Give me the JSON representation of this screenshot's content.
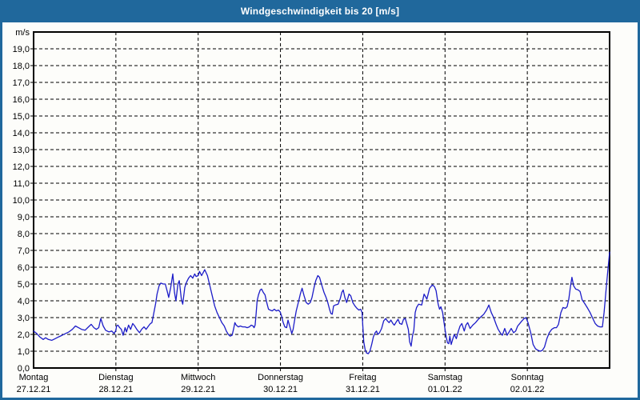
{
  "window": {
    "title": "Windgeschwindigkeit bis 20 [m/s]"
  },
  "colors": {
    "titlebar_bg": "#20689c",
    "titlebar_text": "#ffffff",
    "window_border": "#20689c",
    "plot_background": "#fdfdfa",
    "grid": "#000000",
    "line": "#1c1cc8"
  },
  "chart_data": {
    "type": "line",
    "title": "Windgeschwindigkeit bis 20 [m/s]",
    "unit_label": "m/s",
    "grid": "dashed",
    "legend": "none",
    "ylim": [
      0,
      20
    ],
    "y_ticks": [
      0,
      1,
      2,
      3,
      4,
      5,
      6,
      7,
      8,
      9,
      10,
      11,
      12,
      13,
      14,
      15,
      16,
      17,
      18,
      19
    ],
    "y_tick_labels": [
      "0,0",
      "1,0",
      "2,0",
      "3,0",
      "4,0",
      "5,0",
      "6,0",
      "7,0",
      "8,0",
      "9,0",
      "10,0",
      "11,0",
      "12,0",
      "13,0",
      "14,0",
      "15,0",
      "16,0",
      "17,0",
      "18,0",
      "19,0"
    ],
    "x_range_hours": [
      0,
      168
    ],
    "x_day_labels": [
      {
        "weekday": "Montag",
        "date": "27.12.21"
      },
      {
        "weekday": "Dienstag",
        "date": "28.12.21"
      },
      {
        "weekday": "Mittwoch",
        "date": "29.12.21"
      },
      {
        "weekday": "Donnerstag",
        "date": "30.12.21"
      },
      {
        "weekday": "Freitag",
        "date": "31.12.21"
      },
      {
        "weekday": "Samstag",
        "date": "01.01.22"
      },
      {
        "weekday": "Sonntag",
        "date": "02.01.22"
      }
    ],
    "series": [
      {
        "name": "Windgeschwindigkeit",
        "color": "#1c1cc8",
        "points": [
          [
            0,
            2.2
          ],
          [
            0.9,
            2.05
          ],
          [
            1.8,
            1.85
          ],
          [
            2.8,
            1.7
          ],
          [
            3.5,
            1.8
          ],
          [
            4.3,
            1.7
          ],
          [
            5.3,
            1.65
          ],
          [
            6.3,
            1.75
          ],
          [
            7.3,
            1.85
          ],
          [
            8.3,
            1.95
          ],
          [
            9.3,
            2.05
          ],
          [
            10.3,
            2.15
          ],
          [
            11.3,
            2.3
          ],
          [
            12.2,
            2.5
          ],
          [
            13.1,
            2.4
          ],
          [
            14,
            2.3
          ],
          [
            15,
            2.25
          ],
          [
            16,
            2.45
          ],
          [
            16.8,
            2.6
          ],
          [
            17.6,
            2.4
          ],
          [
            18.3,
            2.3
          ],
          [
            19,
            2.4
          ],
          [
            19.6,
            2.95
          ],
          [
            20.3,
            2.5
          ],
          [
            21,
            2.25
          ],
          [
            22,
            2.15
          ],
          [
            22.8,
            2.2
          ],
          [
            23.5,
            2.05
          ],
          [
            24,
            2.25
          ],
          [
            24.2,
            2.5
          ],
          [
            24.6,
            2.55
          ],
          [
            25.1,
            2.4
          ],
          [
            25.6,
            2.3
          ],
          [
            26.1,
            1.95
          ],
          [
            26.7,
            2.4
          ],
          [
            27.1,
            2.15
          ],
          [
            27.7,
            2.55
          ],
          [
            28.3,
            2.3
          ],
          [
            28.9,
            2.65
          ],
          [
            29.5,
            2.5
          ],
          [
            30.1,
            2.3
          ],
          [
            30.9,
            2.1
          ],
          [
            31.5,
            2.3
          ],
          [
            32.2,
            2.45
          ],
          [
            32.8,
            2.3
          ],
          [
            33.5,
            2.5
          ],
          [
            34.1,
            2.65
          ],
          [
            34.5,
            2.7
          ],
          [
            35,
            3.2
          ],
          [
            35.6,
            3.85
          ],
          [
            36,
            4.4
          ],
          [
            36.6,
            4.9
          ],
          [
            37.1,
            5.05
          ],
          [
            37.8,
            5.0
          ],
          [
            38.4,
            5.0
          ],
          [
            39,
            4.55
          ],
          [
            39.4,
            4.2
          ],
          [
            40,
            4.8
          ],
          [
            40.6,
            5.6
          ],
          [
            41.1,
            4.5
          ],
          [
            41.5,
            4.0
          ],
          [
            42.1,
            5.0
          ],
          [
            42.5,
            5.2
          ],
          [
            43.1,
            4.1
          ],
          [
            43.5,
            3.8
          ],
          [
            44.1,
            4.8
          ],
          [
            44.6,
            5.1
          ],
          [
            45.2,
            5.35
          ],
          [
            45.8,
            5.5
          ],
          [
            46.4,
            5.35
          ],
          [
            47,
            5.6
          ],
          [
            47.4,
            5.45
          ],
          [
            48,
            5.5
          ],
          [
            48.4,
            5.75
          ],
          [
            49,
            5.5
          ],
          [
            49.9,
            5.85
          ],
          [
            50.7,
            5.5
          ],
          [
            51.4,
            4.9
          ],
          [
            52.1,
            4.3
          ],
          [
            52.8,
            3.7
          ],
          [
            53.5,
            3.3
          ],
          [
            54.2,
            3.0
          ],
          [
            54.9,
            2.7
          ],
          [
            55.6,
            2.5
          ],
          [
            56.2,
            2.2
          ],
          [
            56.8,
            2.0
          ],
          [
            57.3,
            1.9
          ],
          [
            57.9,
            1.95
          ],
          [
            58.3,
            2.3
          ],
          [
            58.7,
            2.7
          ],
          [
            59.1,
            2.55
          ],
          [
            59.7,
            2.45
          ],
          [
            60.3,
            2.5
          ],
          [
            61,
            2.45
          ],
          [
            61.7,
            2.45
          ],
          [
            62.3,
            2.4
          ],
          [
            62.9,
            2.45
          ],
          [
            63.5,
            2.55
          ],
          [
            64,
            2.5
          ],
          [
            64.3,
            2.4
          ],
          [
            64.6,
            2.55
          ],
          [
            64.9,
            3.2
          ],
          [
            65.2,
            4.0
          ],
          [
            65.6,
            4.35
          ],
          [
            66.1,
            4.65
          ],
          [
            66.5,
            4.7
          ],
          [
            67,
            4.5
          ],
          [
            67.5,
            4.35
          ],
          [
            68,
            3.9
          ],
          [
            68.5,
            3.5
          ],
          [
            69,
            3.45
          ],
          [
            69.6,
            3.4
          ],
          [
            70.2,
            3.5
          ],
          [
            70.8,
            3.4
          ],
          [
            71.4,
            3.45
          ],
          [
            71.9,
            3.35
          ],
          [
            72.3,
            3.1
          ],
          [
            72.8,
            2.7
          ],
          [
            73.3,
            2.45
          ],
          [
            73.8,
            2.4
          ],
          [
            74.2,
            2.85
          ],
          [
            74.7,
            2.5
          ],
          [
            75.3,
            2.05
          ],
          [
            75.7,
            2.3
          ],
          [
            76.1,
            2.8
          ],
          [
            76.6,
            3.4
          ],
          [
            77.2,
            3.9
          ],
          [
            77.8,
            4.4
          ],
          [
            78.3,
            4.75
          ],
          [
            78.9,
            4.3
          ],
          [
            79.5,
            3.9
          ],
          [
            80.1,
            3.8
          ],
          [
            80.7,
            3.9
          ],
          [
            81.2,
            4.2
          ],
          [
            81.8,
            4.8
          ],
          [
            82.3,
            5.2
          ],
          [
            82.9,
            5.5
          ],
          [
            83.4,
            5.4
          ],
          [
            84.1,
            4.9
          ],
          [
            84.7,
            4.5
          ],
          [
            85.3,
            4.2
          ],
          [
            85.8,
            3.9
          ],
          [
            86.3,
            3.5
          ],
          [
            86.7,
            3.25
          ],
          [
            87.1,
            3.2
          ],
          [
            87.5,
            3.7
          ],
          [
            88,
            3.75
          ],
          [
            88.8,
            3.8
          ],
          [
            89.4,
            4.1
          ],
          [
            89.9,
            4.5
          ],
          [
            90.3,
            4.65
          ],
          [
            90.8,
            4.2
          ],
          [
            91.3,
            3.9
          ],
          [
            92,
            4.4
          ],
          [
            92.5,
            4.3
          ],
          [
            93.1,
            3.9
          ],
          [
            93.7,
            3.7
          ],
          [
            94.3,
            3.55
          ],
          [
            94.9,
            3.45
          ],
          [
            95.4,
            3.5
          ],
          [
            95.8,
            3.3
          ],
          [
            96,
            2.6
          ],
          [
            96.3,
            1.55
          ],
          [
            96.7,
            1.1
          ],
          [
            97.1,
            0.9
          ],
          [
            97.6,
            0.85
          ],
          [
            98.1,
            1.0
          ],
          [
            98.6,
            1.4
          ],
          [
            99.1,
            1.85
          ],
          [
            99.6,
            2.1
          ],
          [
            100,
            2.2
          ],
          [
            100.4,
            2.0
          ],
          [
            100.9,
            2.1
          ],
          [
            101.5,
            2.35
          ],
          [
            102.1,
            2.8
          ],
          [
            102.7,
            2.95
          ],
          [
            103.2,
            2.8
          ],
          [
            103.7,
            2.7
          ],
          [
            104.2,
            2.85
          ],
          [
            104.8,
            2.65
          ],
          [
            105.2,
            2.55
          ],
          [
            105.8,
            2.75
          ],
          [
            106.3,
            2.9
          ],
          [
            106.8,
            2.65
          ],
          [
            107.4,
            2.6
          ],
          [
            107.9,
            2.9
          ],
          [
            108.4,
            2.95
          ],
          [
            108.9,
            2.6
          ],
          [
            109.3,
            2.3
          ],
          [
            109.7,
            1.55
          ],
          [
            110.1,
            1.3
          ],
          [
            110.5,
            1.9
          ],
          [
            110.9,
            2.25
          ],
          [
            111.3,
            3.3
          ],
          [
            111.7,
            3.6
          ],
          [
            112.3,
            3.8
          ],
          [
            113.2,
            3.75
          ],
          [
            113.9,
            4.4
          ],
          [
            114.7,
            4.1
          ],
          [
            115.5,
            4.75
          ],
          [
            116.3,
            4.95
          ],
          [
            116.9,
            4.85
          ],
          [
            117.4,
            4.6
          ],
          [
            118,
            3.8
          ],
          [
            118.4,
            3.5
          ],
          [
            118.8,
            3.65
          ],
          [
            119.3,
            3.3
          ],
          [
            119.6,
            2.85
          ],
          [
            120,
            2.3
          ],
          [
            120.3,
            1.9
          ],
          [
            120.7,
            1.5
          ],
          [
            121.1,
            1.45
          ],
          [
            121.4,
            1.9
          ],
          [
            121.8,
            1.4
          ],
          [
            122.3,
            1.75
          ],
          [
            122.7,
            2.0
          ],
          [
            123.3,
            1.75
          ],
          [
            123.9,
            2.2
          ],
          [
            124.4,
            2.5
          ],
          [
            124.9,
            2.65
          ],
          [
            125.6,
            2.2
          ],
          [
            126.1,
            2.55
          ],
          [
            126.6,
            2.7
          ],
          [
            127.3,
            2.35
          ],
          [
            128.1,
            2.55
          ],
          [
            128.9,
            2.7
          ],
          [
            129.7,
            2.9
          ],
          [
            130.5,
            3.05
          ],
          [
            131.3,
            3.2
          ],
          [
            132.1,
            3.45
          ],
          [
            132.8,
            3.75
          ],
          [
            133.5,
            3.3
          ],
          [
            134.2,
            3.0
          ],
          [
            134.9,
            2.6
          ],
          [
            135.5,
            2.3
          ],
          [
            136.1,
            2.1
          ],
          [
            136.7,
            1.95
          ],
          [
            137.4,
            2.35
          ],
          [
            138.1,
            1.95
          ],
          [
            138.7,
            2.15
          ],
          [
            139.3,
            2.35
          ],
          [
            140,
            2.1
          ],
          [
            140.6,
            2.2
          ],
          [
            141.2,
            2.5
          ],
          [
            141.8,
            2.65
          ],
          [
            142.4,
            2.8
          ],
          [
            143.1,
            2.95
          ],
          [
            143.6,
            3.0
          ],
          [
            144.2,
            2.7
          ],
          [
            145,
            2.1
          ],
          [
            145.7,
            1.4
          ],
          [
            146.4,
            1.15
          ],
          [
            147.1,
            1.05
          ],
          [
            147.8,
            1.0
          ],
          [
            148.4,
            1.05
          ],
          [
            149,
            1.25
          ],
          [
            149.7,
            1.75
          ],
          [
            150.4,
            2.1
          ],
          [
            151.1,
            2.3
          ],
          [
            151.9,
            2.4
          ],
          [
            152.5,
            2.4
          ],
          [
            153.1,
            2.6
          ],
          [
            153.8,
            3.3
          ],
          [
            154.4,
            3.6
          ],
          [
            155.1,
            3.55
          ],
          [
            155.6,
            3.65
          ],
          [
            156.1,
            4.1
          ],
          [
            156.6,
            4.85
          ],
          [
            157,
            5.4
          ],
          [
            157.5,
            4.9
          ],
          [
            158.1,
            4.7
          ],
          [
            158.8,
            4.65
          ],
          [
            159.4,
            4.55
          ],
          [
            160,
            4.05
          ],
          [
            160.7,
            3.85
          ],
          [
            161.6,
            3.55
          ],
          [
            162.3,
            3.3
          ],
          [
            163.1,
            2.95
          ],
          [
            163.8,
            2.65
          ],
          [
            164.5,
            2.5
          ],
          [
            165.2,
            2.45
          ],
          [
            165.9,
            2.45
          ],
          [
            166.4,
            3.3
          ],
          [
            166.9,
            4.5
          ],
          [
            167.4,
            5.6
          ],
          [
            168,
            6.9
          ]
        ]
      }
    ]
  }
}
